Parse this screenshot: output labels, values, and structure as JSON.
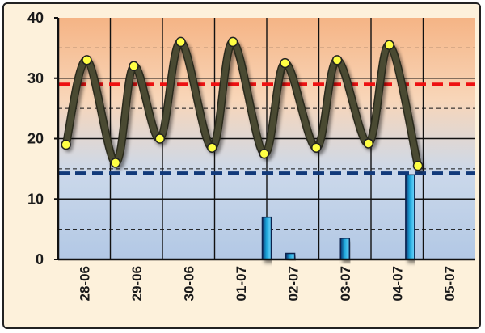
{
  "chart_data": {
    "type": "line",
    "title": "",
    "xlabel": "",
    "ylabel": "",
    "ylim": [
      0,
      40
    ],
    "yticks": [
      "0",
      "10",
      "20",
      "30",
      "40"
    ],
    "categories": [
      "28-06",
      "29-06",
      "30-06",
      "01-07",
      "02-07",
      "03-07",
      "04-07",
      "05-07"
    ],
    "line_series": {
      "x": [
        0.15,
        0.55,
        1.1,
        1.45,
        1.95,
        2.35,
        2.95,
        3.35,
        3.95,
        4.35,
        4.95,
        5.35,
        5.95,
        6.35,
        6.9
      ],
      "values": [
        19,
        33,
        16,
        32,
        20,
        36,
        18.5,
        36,
        17.5,
        32.5,
        18.5,
        33,
        19.2,
        35.5,
        15.5
      ],
      "color": "#4a4a32",
      "marker_color": "#ffff44"
    },
    "bar_series": {
      "x": [
        4.0,
        4.45,
        5.5,
        6.75
      ],
      "values": [
        7,
        1,
        3.5,
        14
      ],
      "color": "#1ba3d8"
    },
    "reference_lines": [
      {
        "value": 29,
        "color": "#ee1111",
        "style": "dashed"
      },
      {
        "value": 14.3,
        "color": "#123a7a",
        "style": "dashed"
      }
    ],
    "grid": true,
    "background_zones": {
      "upper": "#f5b98a",
      "lower": "#b6cbe6"
    }
  }
}
